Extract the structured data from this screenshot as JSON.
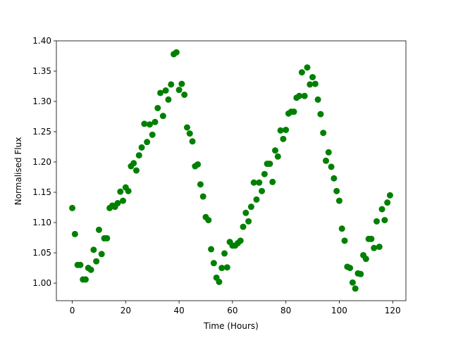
{
  "chart_data": {
    "type": "scatter",
    "color": "#008000",
    "x_label": "Time (Hours)",
    "y_label": "Normalised Flux",
    "xlim": [
      -5.95,
      124.95
    ],
    "ylim": [
      0.971,
      1.4
    ],
    "xticks": [
      0,
      20,
      40,
      60,
      80,
      100,
      120
    ],
    "yticks": [
      {
        "value": 1.0,
        "label": "1.00"
      },
      1.05,
      {
        "value": 1.1,
        "label": "1.10"
      },
      1.15,
      {
        "value": 1.2,
        "label": "1.20"
      },
      1.25,
      {
        "value": 1.3,
        "label": "1.30"
      },
      1.35,
      {
        "value": 1.4,
        "label": "1.40"
      }
    ],
    "x": [
      0,
      1,
      2,
      3,
      4,
      5,
      6,
      7,
      8,
      9,
      10,
      11,
      12,
      13,
      14,
      15,
      16,
      17,
      18,
      19,
      20,
      21,
      22,
      23,
      24,
      25,
      26,
      27,
      28,
      29,
      30,
      31,
      32,
      33,
      34,
      35,
      36,
      37,
      38,
      39,
      40,
      41,
      42,
      43,
      44,
      45,
      46,
      47,
      48,
      49,
      50,
      51,
      52,
      53,
      54,
      55,
      56,
      57,
      58,
      59,
      60,
      61,
      62,
      63,
      64,
      65,
      66,
      67,
      68,
      69,
      70,
      71,
      72,
      73,
      74,
      75,
      76,
      77,
      78,
      79,
      80,
      81,
      82,
      83,
      84,
      85,
      86,
      87,
      88,
      89,
      90,
      91,
      92,
      93,
      94,
      95,
      96,
      97,
      98,
      99,
      100,
      101,
      102,
      103,
      104,
      105,
      106,
      107,
      108,
      109,
      110,
      111,
      112,
      113,
      114,
      115,
      116,
      117,
      118,
      119
    ],
    "values": [
      1.124,
      1.081,
      1.03,
      1.03,
      1.006,
      1.006,
      1.025,
      1.022,
      1.055,
      1.036,
      1.088,
      1.048,
      1.074,
      1.074,
      1.124,
      1.128,
      1.126,
      1.132,
      1.151,
      1.136,
      1.158,
      1.152,
      1.193,
      1.198,
      1.186,
      1.211,
      1.224,
      1.263,
      1.233,
      1.262,
      1.245,
      1.266,
      1.289,
      1.314,
      1.276,
      1.318,
      1.303,
      1.328,
      1.378,
      1.381,
      1.319,
      1.329,
      1.311,
      1.257,
      1.247,
      1.234,
      1.193,
      1.196,
      1.163,
      1.143,
      1.109,
      1.104,
      1.056,
      1.033,
      1.009,
      1.002,
      1.025,
      1.049,
      1.026,
      1.068,
      1.062,
      1.062,
      1.066,
      1.07,
      1.093,
      1.116,
      1.102,
      1.126,
      1.166,
      1.138,
      1.166,
      1.152,
      1.18,
      1.197,
      1.197,
      1.167,
      1.219,
      1.209,
      1.252,
      1.238,
      1.253,
      1.28,
      1.283,
      1.283,
      1.306,
      1.309,
      1.348,
      1.309,
      1.356,
      1.328,
      1.34,
      1.329,
      1.303,
      1.279,
      1.248,
      1.202,
      1.216,
      1.192,
      1.173,
      1.152,
      1.136,
      1.09,
      1.07,
      1.027,
      1.025,
      1.001,
      0.991,
      1.016,
      1.015,
      1.046,
      1.04,
      1.073,
      1.073,
      1.058,
      1.102,
      1.06,
      1.122,
      1.104,
      1.133,
      1.145
    ]
  }
}
